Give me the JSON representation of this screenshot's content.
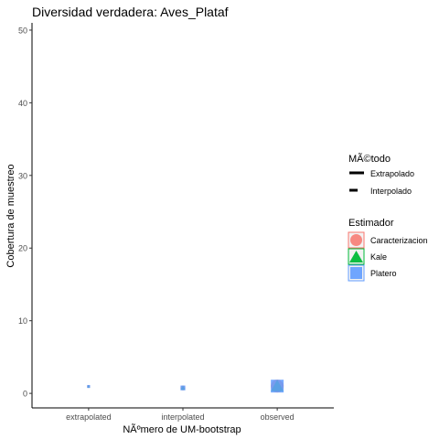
{
  "chart_data": {
    "type": "scatter",
    "title": "Diversidad verdadera: Aves_Plataf",
    "xlabel": "NÃºmero de UM-bootstrap",
    "ylabel": "Cobertura de muestreo",
    "categories": [
      "extrapolated",
      "interpolated",
      "observed"
    ],
    "ylim": [
      -2,
      51
    ],
    "yticks": [
      0,
      10,
      20,
      30,
      40,
      50
    ],
    "grid": false,
    "legend_position": "right",
    "legends": [
      {
        "title": "MÃ©todo",
        "entries": [
          {
            "label": "Extrapolado",
            "line": "solid"
          },
          {
            "label": "Interpolado",
            "line": "dashed"
          }
        ]
      },
      {
        "title": "Estimador",
        "entries": [
          {
            "label": "Caracterizacion",
            "color": "#F8766D",
            "shape": "circle"
          },
          {
            "label": "Kale",
            "color": "#00BA38",
            "shape": "triangle"
          },
          {
            "label": "Platero",
            "color": "#619CFF",
            "shape": "square"
          }
        ]
      }
    ],
    "series": [
      {
        "name": "Caracterizacion",
        "color": "#F8766D",
        "shape": "circle",
        "x": [
          "extrapolated",
          "interpolated",
          "observed"
        ],
        "y": [
          0.95,
          0.75,
          1.0
        ]
      },
      {
        "name": "Kale",
        "color": "#00BA38",
        "shape": "triangle",
        "x": [
          "extrapolated",
          "interpolated",
          "observed"
        ],
        "y": [
          0.95,
          0.75,
          1.0
        ]
      },
      {
        "name": "Platero",
        "color": "#619CFF",
        "shape": "square",
        "x": [
          "extrapolated",
          "interpolated",
          "observed"
        ],
        "y": [
          0.95,
          0.75,
          1.0
        ]
      }
    ],
    "colors": {
      "axis": "#333333",
      "tick_label": "#4d4d4d",
      "text": "#000000",
      "legend_key_line": "#000000"
    }
  }
}
